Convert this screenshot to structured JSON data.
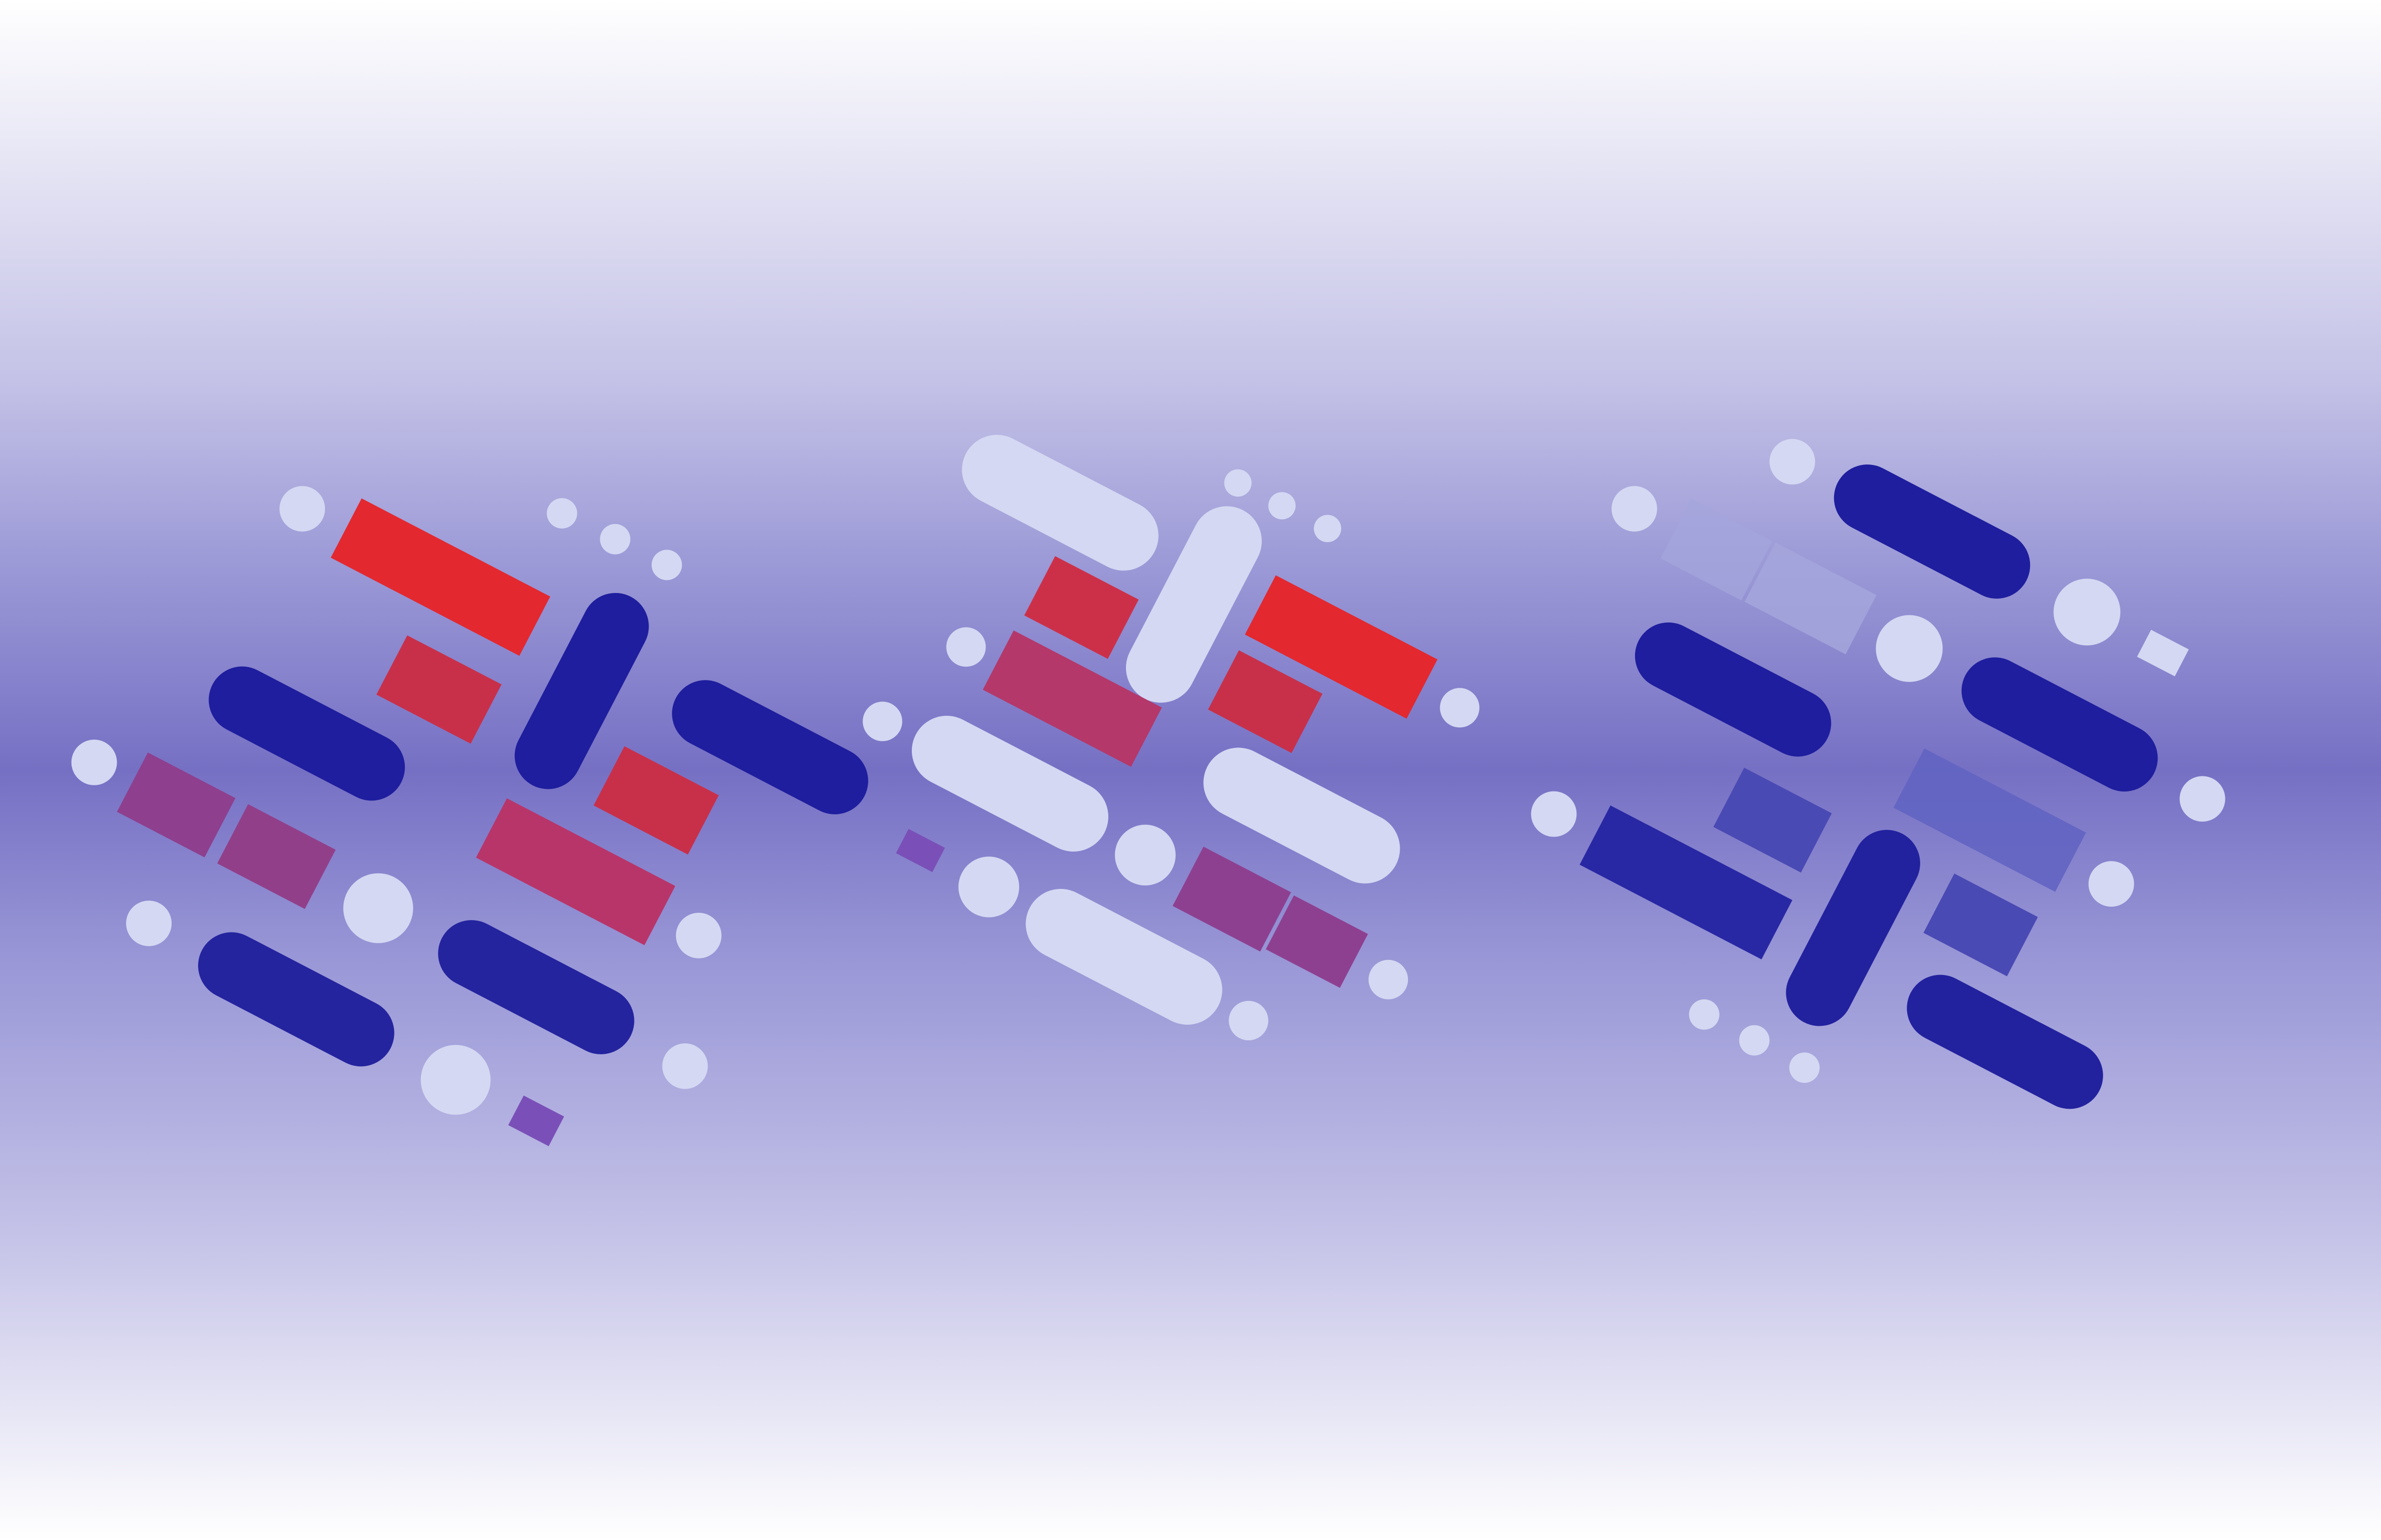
{
  "palette": {
    "navy": "#1e1ea0",
    "pale_lavender": "#d4d8f2",
    "red": "#e5262e",
    "magenta_red": "#b83660",
    "purple": "#8a3f8f",
    "violet": "#7a50b8",
    "blue_violet": "#4545b0",
    "faded_lavender": "#a4a6dc",
    "band_center": "#7670c4",
    "band_edge": "#ffffff"
  },
  "motif": {
    "description_words": [],
    "clusters": 3
  }
}
